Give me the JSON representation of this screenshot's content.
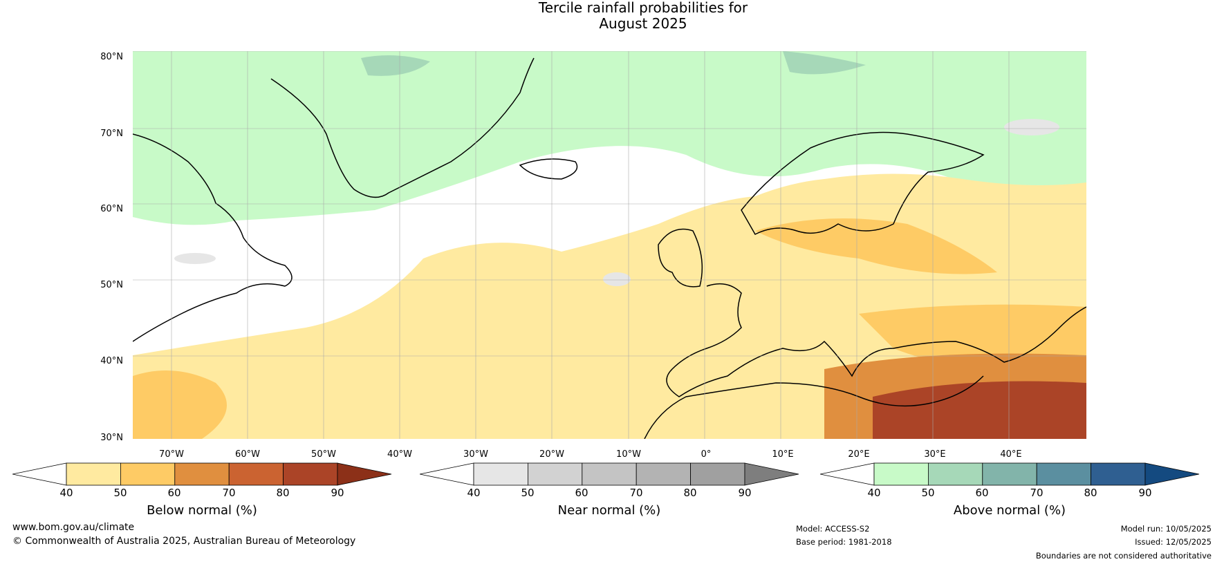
{
  "title": [
    "Tercile rainfall probabilities for",
    "August 2025"
  ],
  "map": {
    "lat_labels": [
      "80°N",
      "70°N",
      "60°N",
      "50°N",
      "40°N",
      "30°N"
    ],
    "lon_labels": [
      "70°W",
      "60°W",
      "50°W",
      "40°W",
      "30°W",
      "20°W",
      "10°W",
      "0°",
      "10°E",
      "20°E",
      "30°E",
      "40°E"
    ]
  },
  "colorbars": [
    {
      "label": "Below normal (%)",
      "ticks": [
        "40",
        "50",
        "60",
        "70",
        "80",
        "90"
      ],
      "colors": [
        "#ffffff",
        "#ffeaa0",
        "#fecb65",
        "#e08f3f",
        "#cb6331",
        "#ab4427",
        "#8c3018"
      ]
    },
    {
      "label": "Near normal (%)",
      "ticks": [
        "40",
        "50",
        "60",
        "70",
        "80",
        "90"
      ],
      "colors": [
        "#ffffff",
        "#e6e6e6",
        "#d2d2d2",
        "#c4c4c4",
        "#b3b3b3",
        "#a0a0a0",
        "#7e7e7e"
      ]
    },
    {
      "label": "Above normal (%)",
      "ticks": [
        "40",
        "50",
        "60",
        "70",
        "80",
        "90"
      ],
      "colors": [
        "#ffffff",
        "#c8fac8",
        "#a6d8b8",
        "#82b4aa",
        "#5b8fa0",
        "#2f5f91",
        "#144a80"
      ]
    }
  ],
  "footer": {
    "website": "www.bom.gov.au/climate",
    "copyright": "© Commonwealth of Australia 2025, Australian Bureau of Meteorology",
    "model": "Model: ACCESS-S2",
    "base_period": "Base period: 1981-2018",
    "model_run": "Model run: 10/05/2025",
    "issued": "Issued: 12/05/2025",
    "disclaimer": "Boundaries are not considered authoritative"
  }
}
